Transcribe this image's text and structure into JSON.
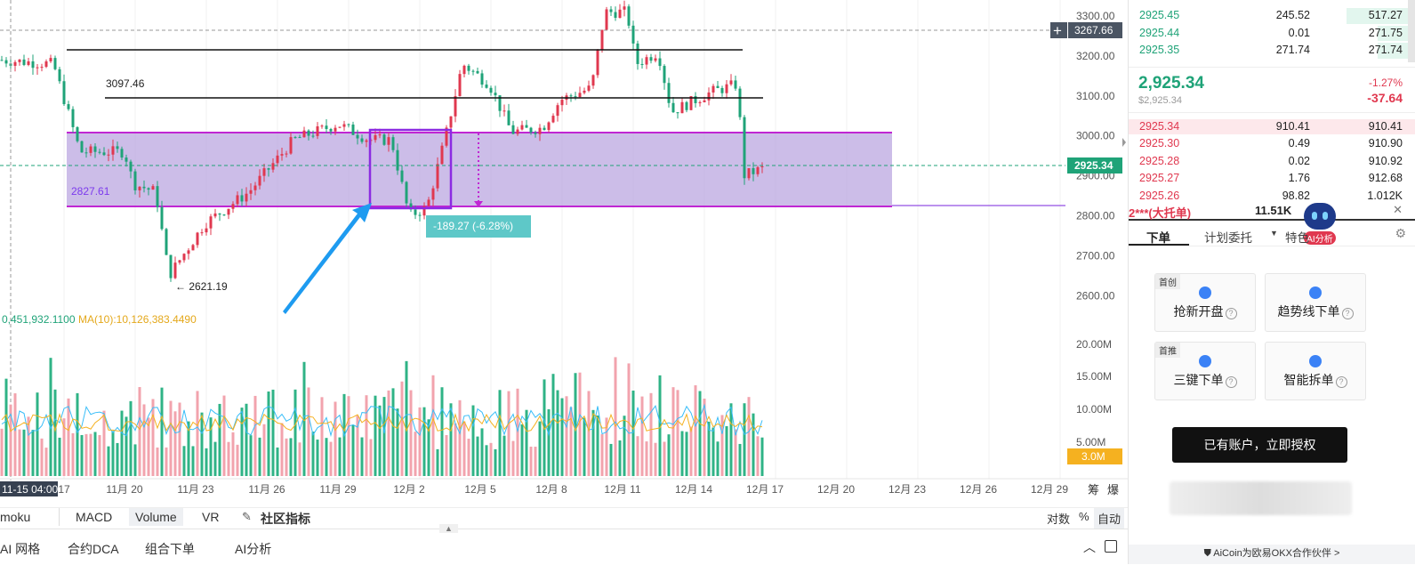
{
  "chart": {
    "y_ticks": [
      "3300.00",
      "3200.00",
      "3100.00",
      "3000.00",
      "2900.00",
      "2800.00",
      "2700.00",
      "2600.00"
    ],
    "x_ticks": [
      "17",
      "11月 20",
      "11月 23",
      "11月 26",
      "11月 29",
      "12月 2",
      "12月 5",
      "12月 8",
      "12月 11",
      "12月 14",
      "12月 17",
      "12月 20",
      "12月 23",
      "12月 26",
      "12月 29"
    ],
    "vol_ticks": [
      "20.00M",
      "15.00M",
      "10.00M",
      "5.00M"
    ],
    "crosshair_date": "11-15 04:00",
    "crosshair_price": "3267.66",
    "plus_icon": "+",
    "last_price_label": "2925.34",
    "volume_label": "3.0M",
    "high_annotation": "3097.46",
    "low_annotation": "← 2621.19",
    "box_label": "2827.61",
    "measure_label": "-189.27 (-6.28%)",
    "vol_legend_1": "0,451,932.1100",
    "vol_legend_2": "MA(10):10,126,383.4490",
    "side_labels": [
      "筹",
      "爆"
    ],
    "colors": {
      "up": "#e0384f",
      "down": "#1fa378",
      "box": "#b7a1de",
      "box_line": "#c026d3",
      "measure": "#8b2be2",
      "arrow": "#1e9bf0"
    }
  },
  "indicator_tabs": [
    "moku",
    "MACD",
    "Volume",
    "VR",
    "社区指标"
  ],
  "scale_options": [
    "对数",
    "%",
    "自动"
  ],
  "bottom_tabs": [
    "AI 网格",
    "合约DCA",
    "组合下单",
    "AI分析"
  ],
  "orderbook": {
    "bids_top": [
      {
        "price": "2925.45",
        "size": "245.52",
        "total": "517.27",
        "fill": 0.24
      },
      {
        "price": "2925.44",
        "size": "0.01",
        "total": "271.75",
        "fill": 0.13
      },
      {
        "price": "2925.35",
        "size": "271.74",
        "total": "271.74",
        "fill": 0.13
      }
    ],
    "last_price": "2,925.34",
    "last_price_usd": "$2,925.34",
    "change_pct": "-1.27%",
    "change_abs": "-37.64",
    "asks": [
      {
        "price": "2925.34",
        "size": "910.41",
        "total": "910.41",
        "fill": 1.0
      },
      {
        "price": "2925.30",
        "size": "0.49",
        "total": "910.90",
        "fill": 0.0
      },
      {
        "price": "2925.28",
        "size": "0.02",
        "total": "910.92",
        "fill": 0.0
      },
      {
        "price": "2925.27",
        "size": "1.76",
        "total": "912.68",
        "fill": 0.0
      },
      {
        "price": "2925.26",
        "size": "98.82",
        "total": "1.012K",
        "fill": 0.0
      }
    ],
    "big_order_label": "2***(大托单)",
    "big_order_value": "11.51K"
  },
  "ai_badge": "AI分析",
  "order_tabs": [
    "下单",
    "计划委托",
    "特色"
  ],
  "cards": [
    {
      "tag": "首创",
      "label": "抢新开盘"
    },
    {
      "tag": "",
      "label": "趋势线下单"
    },
    {
      "tag": "首推",
      "label": "三键下单"
    },
    {
      "tag": "",
      "label": "智能拆单"
    }
  ],
  "auth_button": "已有账户，立即授权",
  "footer_text": "AiCoin为欧易OKX合作伙伴 >"
}
